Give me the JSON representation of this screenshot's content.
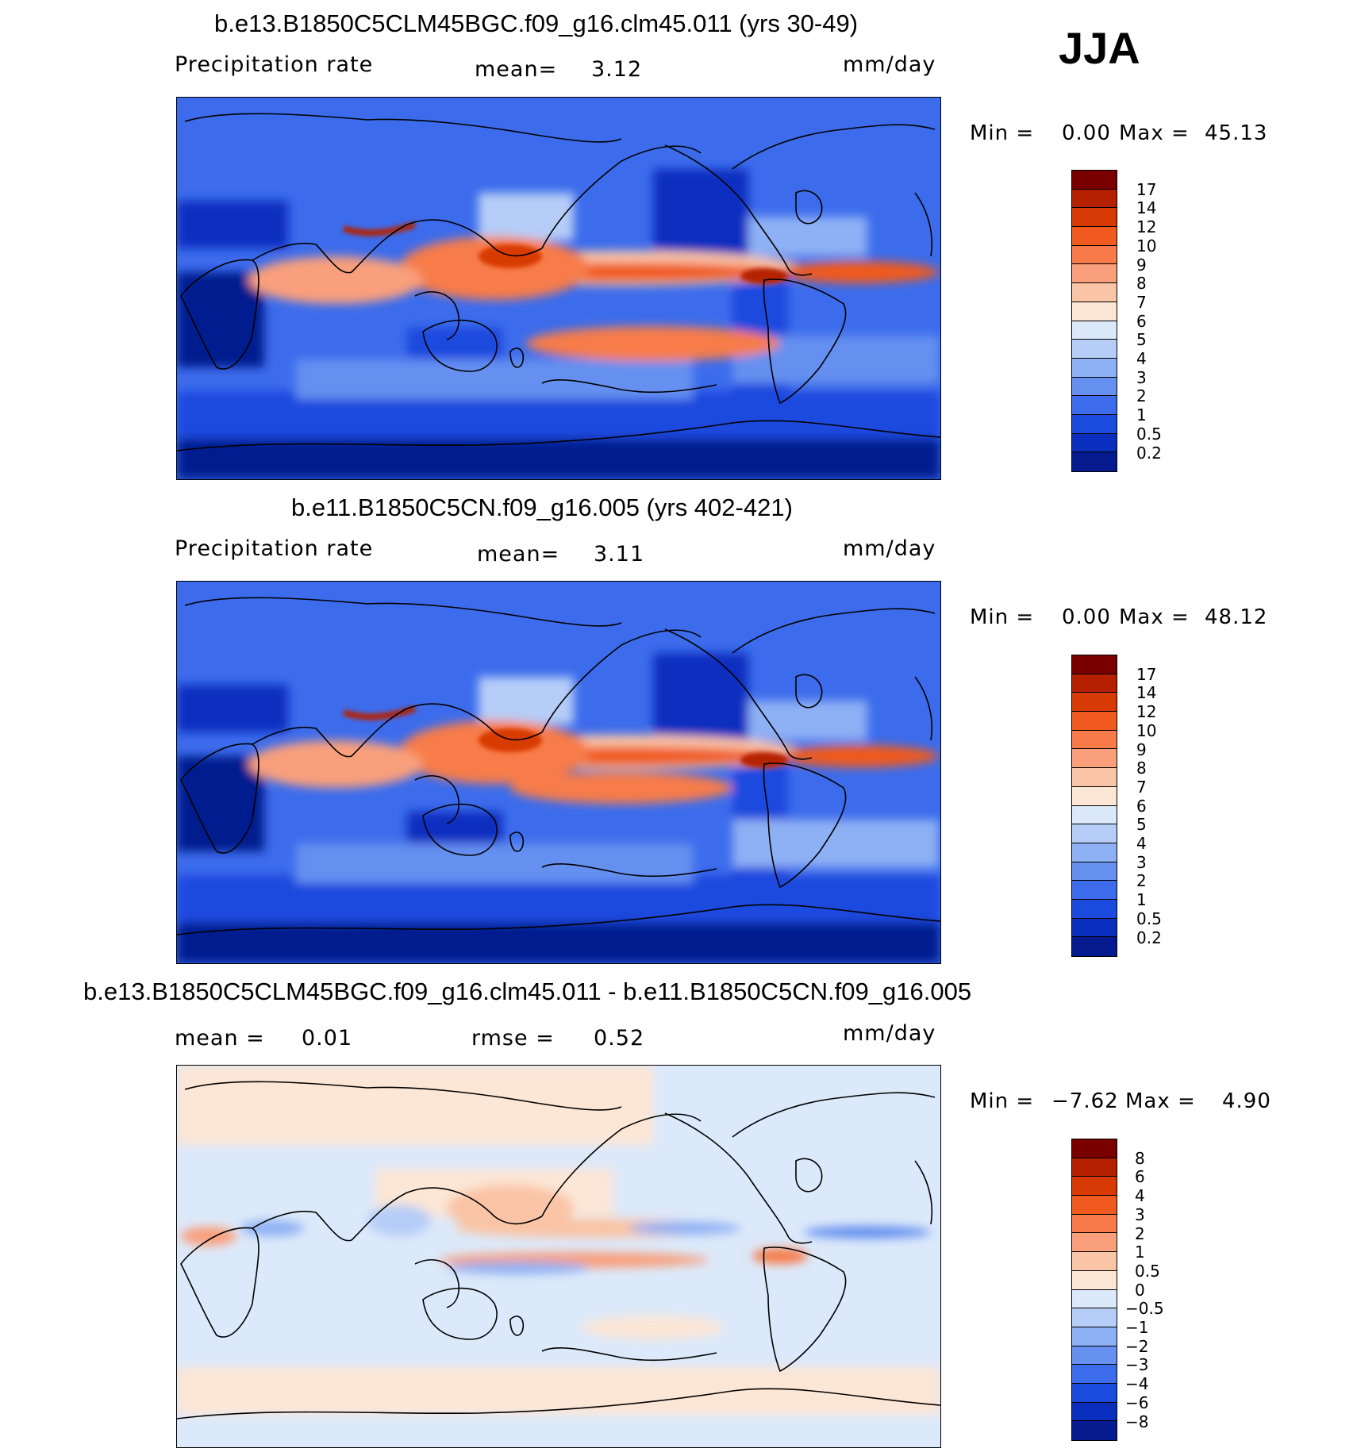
{
  "season_label": "JJA",
  "panels": [
    {
      "title": "b.e13.B1850C5CLM45BGC.f09_g16.clm45.011 (yrs 30-49)",
      "variable_label": "Precipitation  rate",
      "mean_label": "mean=",
      "mean_value": "3.12",
      "units": "mm/day",
      "min_label": "Min  =",
      "min_value": "0.00",
      "max_label": "Max  =",
      "max_value": "45.13",
      "levels": [
        "17",
        "14",
        "12",
        "10",
        "9",
        "8",
        "7",
        "6",
        "5",
        "4",
        "3",
        "2",
        "1",
        "0.5",
        "0.2"
      ],
      "colors": [
        "#7a0000",
        "#b52000",
        "#d83a05",
        "#f05a1e",
        "#f77b48",
        "#f99f7b",
        "#fac4a6",
        "#fce6d6",
        "#dce9fa",
        "#b6cdf7",
        "#8eb0f4",
        "#6590f0",
        "#3c6cec",
        "#1b4ade",
        "#0a2fbf",
        "#041a8e"
      ]
    },
    {
      "title": "b.e11.B1850C5CN.f09_g16.005 (yrs 402-421)",
      "variable_label": "Precipitation  rate",
      "mean_label": "mean=",
      "mean_value": "3.11",
      "units": "mm/day",
      "min_label": "Min  =",
      "min_value": "0.00",
      "max_label": "Max  =",
      "max_value": "48.12",
      "levels": [
        "17",
        "14",
        "12",
        "10",
        "9",
        "8",
        "7",
        "6",
        "5",
        "4",
        "3",
        "2",
        "1",
        "0.5",
        "0.2"
      ],
      "colors": [
        "#7a0000",
        "#b52000",
        "#d83a05",
        "#f05a1e",
        "#f77b48",
        "#f99f7b",
        "#fac4a6",
        "#fce6d6",
        "#dce9fa",
        "#b6cdf7",
        "#8eb0f4",
        "#6590f0",
        "#3c6cec",
        "#1b4ade",
        "#0a2fbf",
        "#041a8e"
      ]
    },
    {
      "title": "b.e13.B1850C5CLM45BGC.f09_g16.clm45.011 - b.e11.B1850C5CN.f09_g16.005",
      "mean_label": "mean  =",
      "mean_value": "0.01",
      "rmse_label": "rmse  =",
      "rmse_value": "0.52",
      "units": "mm/day",
      "min_label": "Min  =",
      "min_value": "−7.62",
      "max_label": "Max  =",
      "max_value": "4.90",
      "levels": [
        "8",
        "6",
        "4",
        "3",
        "2",
        "1",
        "0.5",
        "0",
        "−0.5",
        "−1",
        "−2",
        "−3",
        "−4",
        "−6",
        "−8"
      ],
      "colors": [
        "#7a0000",
        "#b52000",
        "#d83a05",
        "#f05a1e",
        "#f77b48",
        "#f99f7b",
        "#fac4a6",
        "#fce6d6",
        "#dce9fa",
        "#b6cdf7",
        "#8eb0f4",
        "#6590f0",
        "#3c6cec",
        "#1b4ade",
        "#0a2fbf",
        "#041a8e"
      ]
    }
  ]
}
